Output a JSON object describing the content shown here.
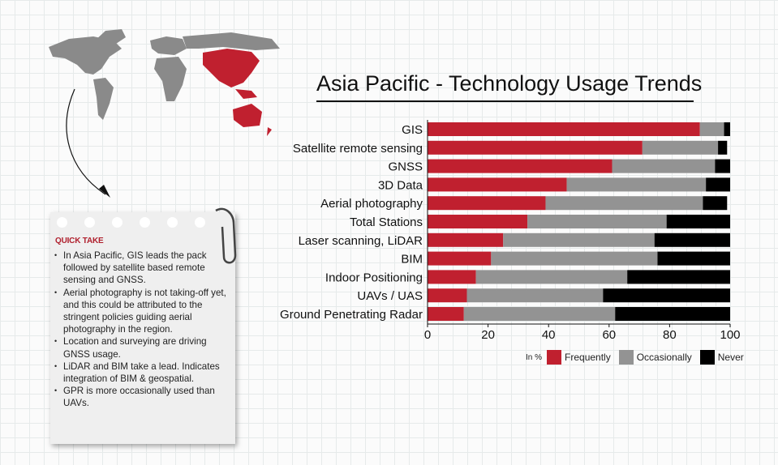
{
  "colors": {
    "frequently": "#c0202f",
    "occasionally": "#939393",
    "never": "#000000",
    "map_gray": "#8a8a8a",
    "map_highlight": "#c0202f"
  },
  "quick_take": {
    "heading": "QUICK TAKE",
    "bullets": [
      "In Asia Pacific, GIS leads the pack followed by satellite based remote sensing and GNSS.",
      "Aerial photography is not taking-off yet, and this could be attributed to the stringent policies guiding aerial photography in the region.",
      "Location and surveying are driving GNSS usage.",
      "LiDAR and BIM take a lead. Indicates integration of BIM & geospatial.",
      "GPR is more occasionally used than UAVs."
    ]
  },
  "chart_data": {
    "type": "bar",
    "orientation": "horizontal",
    "stacked": true,
    "title": "Asia Pacific - Technology Usage Trends",
    "unit_label": "In %",
    "categories": [
      "GIS",
      "Satellite remote sensing",
      "GNSS",
      "3D Data",
      "Aerial photography",
      "Total Stations",
      "Laser scanning, LiDAR",
      "BIM",
      "Indoor Positioning",
      "UAVs / UAS",
      "Ground Penetrating Radar"
    ],
    "series": [
      {
        "name": "Frequently",
        "values": [
          90,
          71,
          61,
          46,
          39,
          33,
          25,
          21,
          16,
          13,
          12
        ]
      },
      {
        "name": "Occasionally",
        "values": [
          8,
          25,
          34,
          46,
          52,
          46,
          50,
          55,
          50,
          45,
          50
        ]
      },
      {
        "name": "Never",
        "values": [
          2,
          3,
          5,
          8,
          8,
          21,
          25,
          24,
          34,
          42,
          38
        ]
      }
    ],
    "xlim": [
      0,
      100
    ],
    "xticks": [
      0,
      20,
      40,
      60,
      80,
      100
    ],
    "grid": false,
    "legend": "bottom-right"
  }
}
